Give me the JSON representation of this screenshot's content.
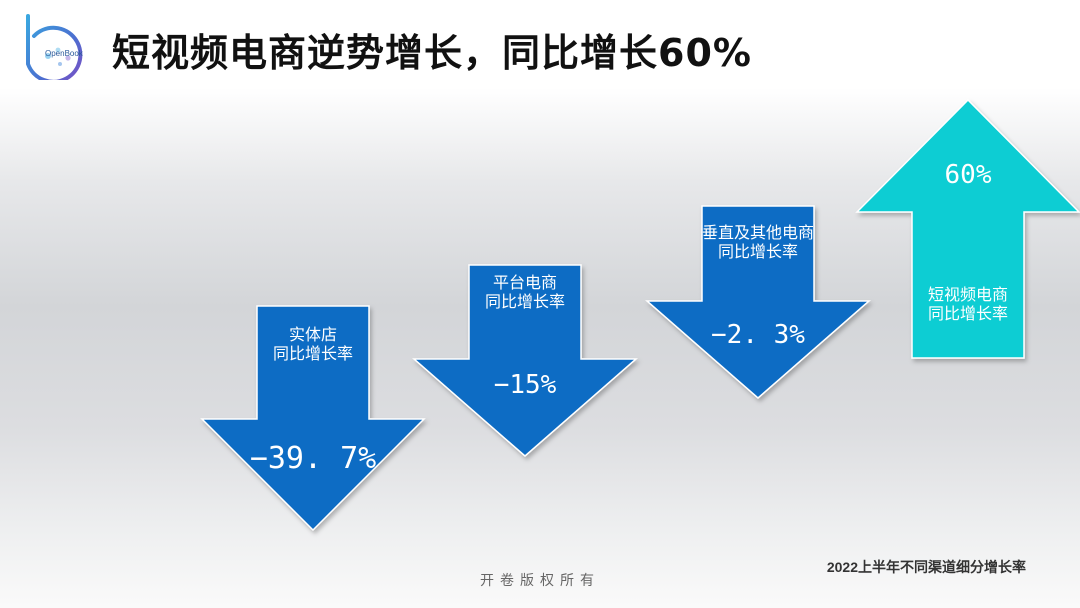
{
  "slide": {
    "title": "短视频电商逆势增长，同比增长60%",
    "logo_text": "OpenBook",
    "footer": "开卷版权所有",
    "caption": "2022上半年不同渠道细分增长率"
  },
  "colors": {
    "down_arrow": "#0a6cc4",
    "up_arrow": "#10cdd3",
    "label_text": "#ffffff"
  },
  "chart_data": {
    "type": "bar",
    "title": "2022上半年不同渠道细分增长率",
    "categories": [
      "实体店同比增长率",
      "平台电商同比增长率",
      "垂直及其他电商同比增长率",
      "短视频电商同比增长率"
    ],
    "values": [
      -39.7,
      -15,
      -2.3,
      60
    ],
    "unit": "%",
    "items": [
      {
        "label_lines": [
          "实体店",
          "同比增长率"
        ],
        "value": -39.7,
        "value_text": "−39. 7%",
        "direction": "down"
      },
      {
        "label_lines": [
          "平台电商",
          "同比增长率"
        ],
        "value": -15,
        "value_text": "−15%",
        "direction": "down"
      },
      {
        "label_lines": [
          "垂直及其他电商",
          "同比增长率"
        ],
        "value": -2.3,
        "value_text": "−2. 3%",
        "direction": "down"
      },
      {
        "label_lines": [
          "短视频电商",
          "同比增长率"
        ],
        "value": 60,
        "value_text": "60%",
        "direction": "up"
      }
    ]
  }
}
